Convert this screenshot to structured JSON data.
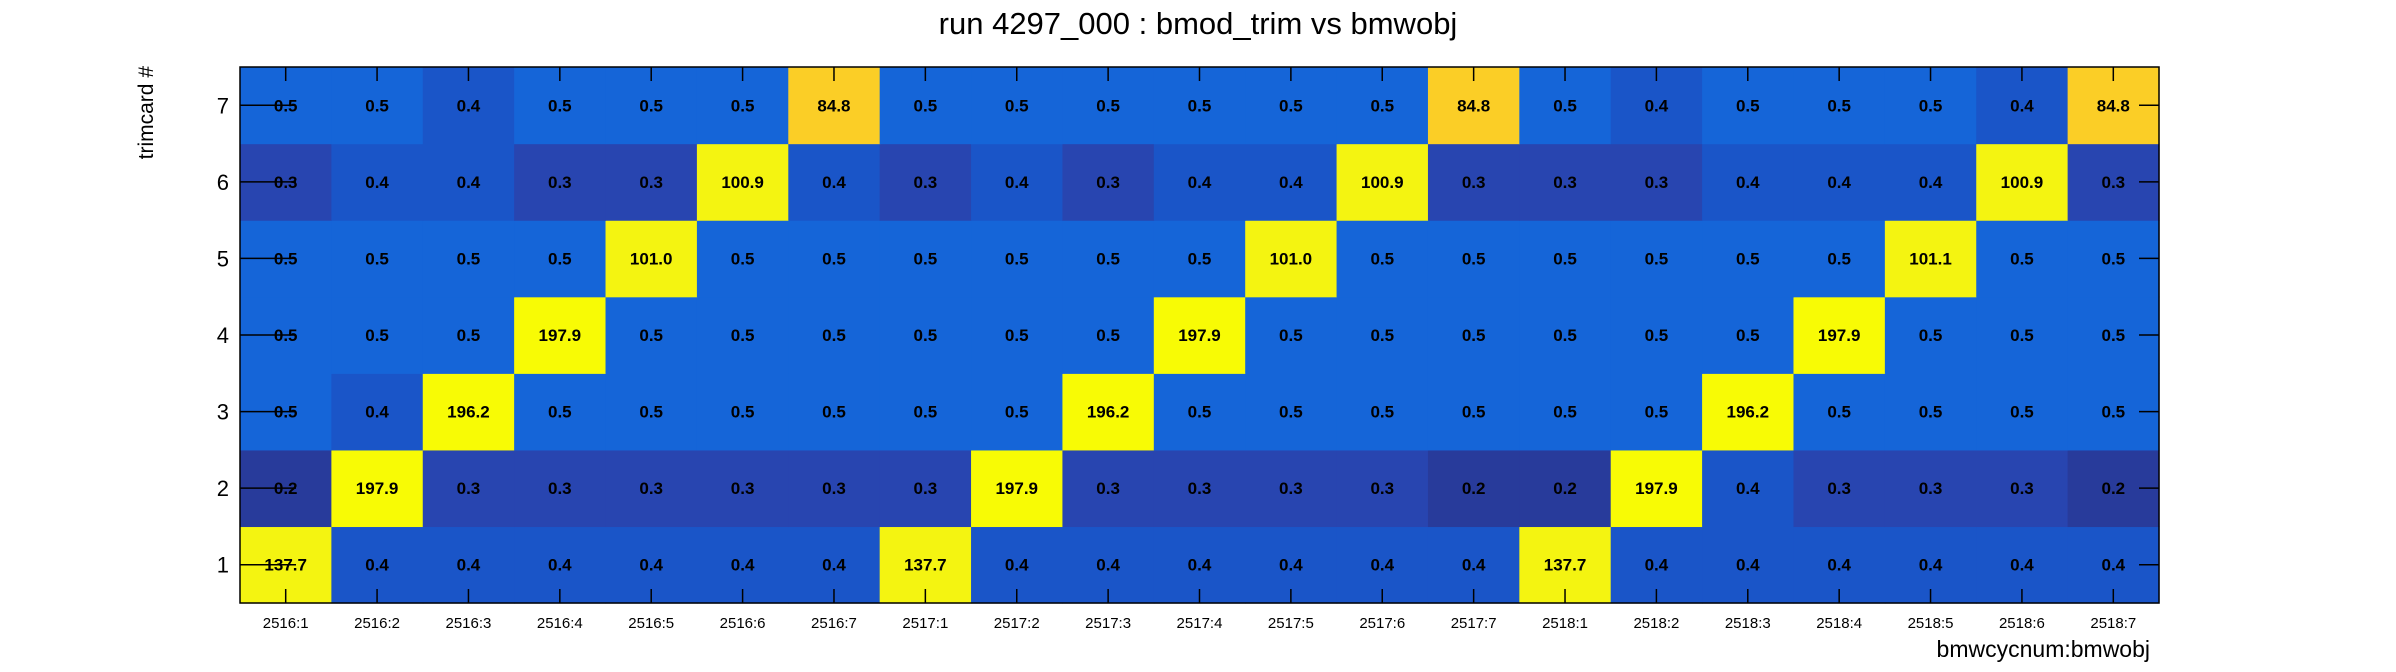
{
  "chart_data": {
    "type": "heatmap",
    "title": "run 4297_000 : bmod_trim vs bmwobj",
    "xlabel": "bmwcycnum:bmwobj",
    "ylabel": "trimcard #",
    "x_categories": [
      "2516:1",
      "2516:2",
      "2516:3",
      "2516:4",
      "2516:5",
      "2516:6",
      "2516:7",
      "2517:1",
      "2517:2",
      "2517:3",
      "2517:4",
      "2517:5",
      "2517:6",
      "2517:7",
      "2518:1",
      "2518:2",
      "2518:3",
      "2518:4",
      "2518:5",
      "2518:6",
      "2518:7"
    ],
    "y_categories": [
      "1",
      "2",
      "3",
      "4",
      "5",
      "6",
      "7"
    ],
    "values": [
      [
        "137.7",
        "0.4",
        "0.4",
        "0.4",
        "0.4",
        "0.4",
        "0.4",
        "137.7",
        "0.4",
        "0.4",
        "0.4",
        "0.4",
        "0.4",
        "0.4",
        "137.7",
        "0.4",
        "0.4",
        "0.4",
        "0.4",
        "0.4",
        "0.4"
      ],
      [
        "0.2",
        "197.9",
        "0.3",
        "0.3",
        "0.3",
        "0.3",
        "0.3",
        "0.3",
        "197.9",
        "0.3",
        "0.3",
        "0.3",
        "0.3",
        "0.2",
        "0.2",
        "197.9",
        "0.4",
        "0.3",
        "0.3",
        "0.3",
        "0.2"
      ],
      [
        "0.5",
        "0.4",
        "196.2",
        "0.5",
        "0.5",
        "0.5",
        "0.5",
        "0.5",
        "0.5",
        "196.2",
        "0.5",
        "0.5",
        "0.5",
        "0.5",
        "0.5",
        "0.5",
        "196.2",
        "0.5",
        "0.5",
        "0.5",
        "0.5"
      ],
      [
        "0.5",
        "0.5",
        "0.5",
        "197.9",
        "0.5",
        "0.5",
        "0.5",
        "0.5",
        "0.5",
        "0.5",
        "197.9",
        "0.5",
        "0.5",
        "0.5",
        "0.5",
        "0.5",
        "0.5",
        "197.9",
        "0.5",
        "0.5",
        "0.5"
      ],
      [
        "0.5",
        "0.5",
        "0.5",
        "0.5",
        "101.0",
        "0.5",
        "0.5",
        "0.5",
        "0.5",
        "0.5",
        "0.5",
        "101.0",
        "0.5",
        "0.5",
        "0.5",
        "0.5",
        "0.5",
        "0.5",
        "101.1",
        "0.5",
        "0.5"
      ],
      [
        "0.3",
        "0.4",
        "0.4",
        "0.3",
        "0.3",
        "100.9",
        "0.4",
        "0.3",
        "0.4",
        "0.3",
        "0.4",
        "0.4",
        "100.9",
        "0.3",
        "0.3",
        "0.3",
        "0.4",
        "0.4",
        "0.4",
        "100.9",
        "0.3"
      ],
      [
        "0.5",
        "0.5",
        "0.4",
        "0.5",
        "0.5",
        "0.5",
        "84.8",
        "0.5",
        "0.5",
        "0.5",
        "0.5",
        "0.5",
        "0.5",
        "84.8",
        "0.5",
        "0.4",
        "0.5",
        "0.5",
        "0.5",
        "0.4",
        "84.8"
      ]
    ],
    "colors": {
      "0.2": "#283b9b",
      "0.3": "#2845b0",
      "0.4": "#1a55c8",
      "0.5": "#1565d8",
      "84.8": "#fbce26",
      "100.9": "#f4f411",
      "101.0": "#f4f411",
      "101.1": "#f4f411",
      "137.7": "#f4f411",
      "196.2": "#f8fb05",
      "197.9": "#f8fb05"
    },
    "grid": false,
    "legend": "none"
  }
}
